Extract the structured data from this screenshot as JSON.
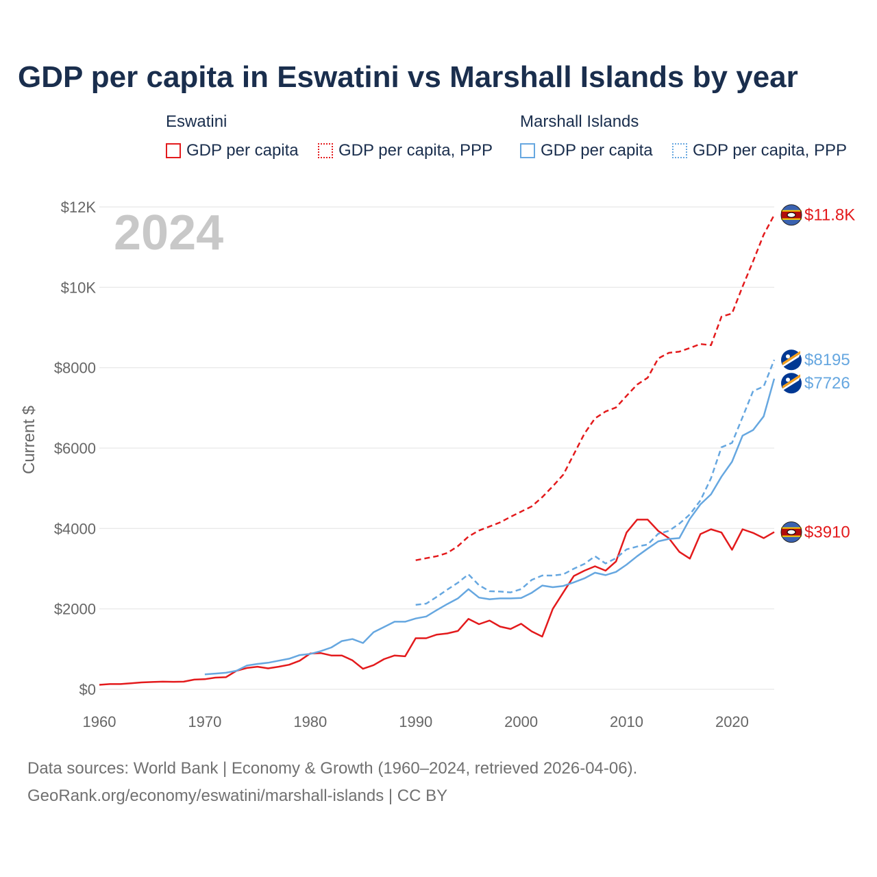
{
  "title": "GDP per capita in Eswatini vs Marshall Islands by year",
  "legend": {
    "groups": [
      {
        "name": "Eswatini",
        "items": [
          "GDP per capita",
          "GDP per capita, PPP"
        ]
      },
      {
        "name": "Marshall Islands",
        "items": [
          "GDP per capita",
          "GDP per capita, PPP"
        ]
      }
    ]
  },
  "year_watermark": "2024",
  "footer": {
    "line1": "Data sources: World Bank | Economy & Growth (1960–2024, retrieved 2026-04-06).",
    "line2": "GeoRank.org/economy/eswatini/marshall-islands | CC BY"
  },
  "colors": {
    "eswatini": "#e31a1c",
    "marshall": "#66a7e0",
    "grid": "#e6e6e6",
    "title": "#1a2e4d"
  },
  "chart_data": {
    "type": "line",
    "title": "GDP per capita in Eswatini vs Marshall Islands by year",
    "ylabel": "Current $",
    "xlabel": "",
    "xlim": [
      1960,
      2024
    ],
    "ylim": [
      0,
      12000
    ],
    "x_ticks": [
      1960,
      1970,
      1980,
      1990,
      2000,
      2010,
      2020
    ],
    "y_ticks": [
      0,
      2000,
      4000,
      6000,
      8000,
      10000,
      12000
    ],
    "y_tick_labels": [
      "$0",
      "$2000",
      "$4000",
      "$6000",
      "$8000",
      "$10K",
      "$12K"
    ],
    "series": [
      {
        "name": "Eswatini – GDP per capita",
        "country": "eswatini",
        "style": "solid",
        "color": "#e31a1c",
        "end_label": "$3910",
        "start_year": 1960,
        "values": [
          110,
          130,
          130,
          150,
          170,
          180,
          190,
          185,
          190,
          240,
          250,
          290,
          300,
          460,
          530,
          560,
          520,
          560,
          610,
          710,
          890,
          900,
          840,
          840,
          720,
          510,
          600,
          750,
          840,
          820,
          1270,
          1270,
          1360,
          1390,
          1450,
          1750,
          1620,
          1710,
          1560,
          1500,
          1630,
          1440,
          1310,
          2000,
          2410,
          2820,
          2950,
          3060,
          2950,
          3180,
          3900,
          4220,
          4220,
          3940,
          3760,
          3420,
          3250,
          3860,
          3980,
          3900,
          3470,
          3980,
          3890,
          3760,
          3910
        ]
      },
      {
        "name": "Eswatini – GDP per capita, PPP",
        "country": "eswatini",
        "style": "dashed",
        "color": "#e31a1c",
        "end_label": "$11.8K",
        "start_year": 1990,
        "values": [
          3210,
          3260,
          3310,
          3390,
          3560,
          3800,
          3950,
          4050,
          4150,
          4290,
          4420,
          4550,
          4780,
          5050,
          5340,
          5850,
          6360,
          6740,
          6910,
          7010,
          7300,
          7580,
          7750,
          8230,
          8370,
          8400,
          8490,
          8590,
          8560,
          9270,
          9350,
          10020,
          10650,
          11310,
          11800
        ]
      },
      {
        "name": "Marshall Islands – GDP per capita",
        "country": "marshall",
        "style": "solid",
        "color": "#66a7e0",
        "end_label": "$7726",
        "start_year": 1970,
        "values": [
          370,
          390,
          410,
          460,
          590,
          630,
          660,
          710,
          760,
          850,
          880,
          950,
          1040,
          1200,
          1250,
          1150,
          1420,
          1550,
          1680,
          1680,
          1760,
          1810,
          1970,
          2120,
          2260,
          2490,
          2280,
          2240,
          2260,
          2260,
          2270,
          2400,
          2580,
          2540,
          2570,
          2660,
          2760,
          2900,
          2840,
          2920,
          3100,
          3310,
          3500,
          3680,
          3740,
          3760,
          4240,
          4600,
          4850,
          5290,
          5660,
          6310,
          6450,
          6790,
          7726
        ]
      },
      {
        "name": "Marshall Islands – GDP per capita, PPP",
        "country": "marshall",
        "style": "dashed",
        "color": "#66a7e0",
        "end_label": "$8195",
        "start_year": 1990,
        "values": [
          2100,
          2130,
          2300,
          2480,
          2650,
          2860,
          2590,
          2440,
          2430,
          2410,
          2490,
          2720,
          2830,
          2830,
          2860,
          3000,
          3120,
          3310,
          3130,
          3260,
          3480,
          3550,
          3600,
          3870,
          3940,
          4120,
          4350,
          4700,
          5250,
          6020,
          6130,
          6770,
          7420,
          7530,
          8195
        ]
      }
    ]
  }
}
